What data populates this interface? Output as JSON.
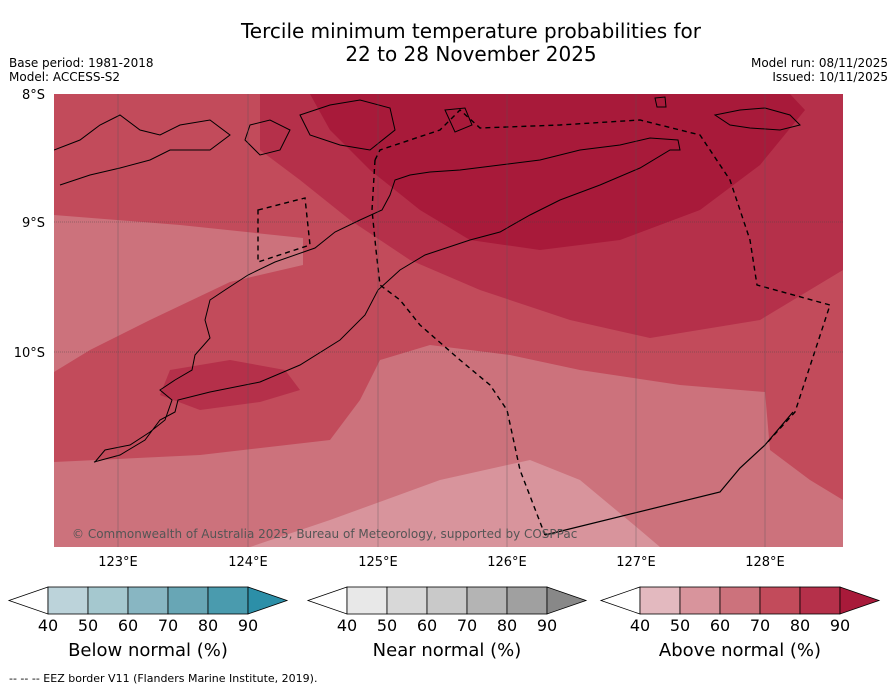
{
  "title_line1": "Tercile minimum temperature probabilities for",
  "title_line2": "22 to 28 November 2025",
  "base_period": "Base period: 1981-2018",
  "model": "Model: ACCESS-S2",
  "model_run": "Model run: 08/11/2025",
  "issued": "Issued: 10/11/2025",
  "lat_labels": [
    "8°S",
    "9°S",
    "10°S"
  ],
  "lon_labels": [
    "123°E",
    "124°E",
    "125°E",
    "126°E",
    "127°E",
    "128°E"
  ],
  "copyright": "© Commonwealth of Australia 2025, Bureau of Meteorology, supported by COSPPac",
  "colorbars": [
    {
      "title": "Below normal (%)",
      "ticks": [
        "40",
        "50",
        "60",
        "70",
        "80",
        "90"
      ],
      "colors": [
        "#bcd3da",
        "#a5c8cf",
        "#88b6c2",
        "#68a6b5",
        "#4a9bae",
        "#2c8fa8"
      ]
    },
    {
      "title": "Near normal (%)",
      "ticks": [
        "40",
        "50",
        "60",
        "70",
        "80",
        "90"
      ],
      "colors": [
        "#e8e8e8",
        "#d8d8d8",
        "#c9c9c9",
        "#b4b4b4",
        "#a0a0a0",
        "#888888"
      ]
    },
    {
      "title": "Above normal (%)",
      "ticks": [
        "40",
        "50",
        "60",
        "70",
        "80",
        "90"
      ],
      "colors": [
        "#e3b9bf",
        "#d8949c",
        "#cc727c",
        "#c24b5b",
        "#b5304a",
        "#a81a3a"
      ]
    }
  ],
  "footer": "-- -- -- EEZ border V11 (Flanders Marine Institute, 2019)."
}
